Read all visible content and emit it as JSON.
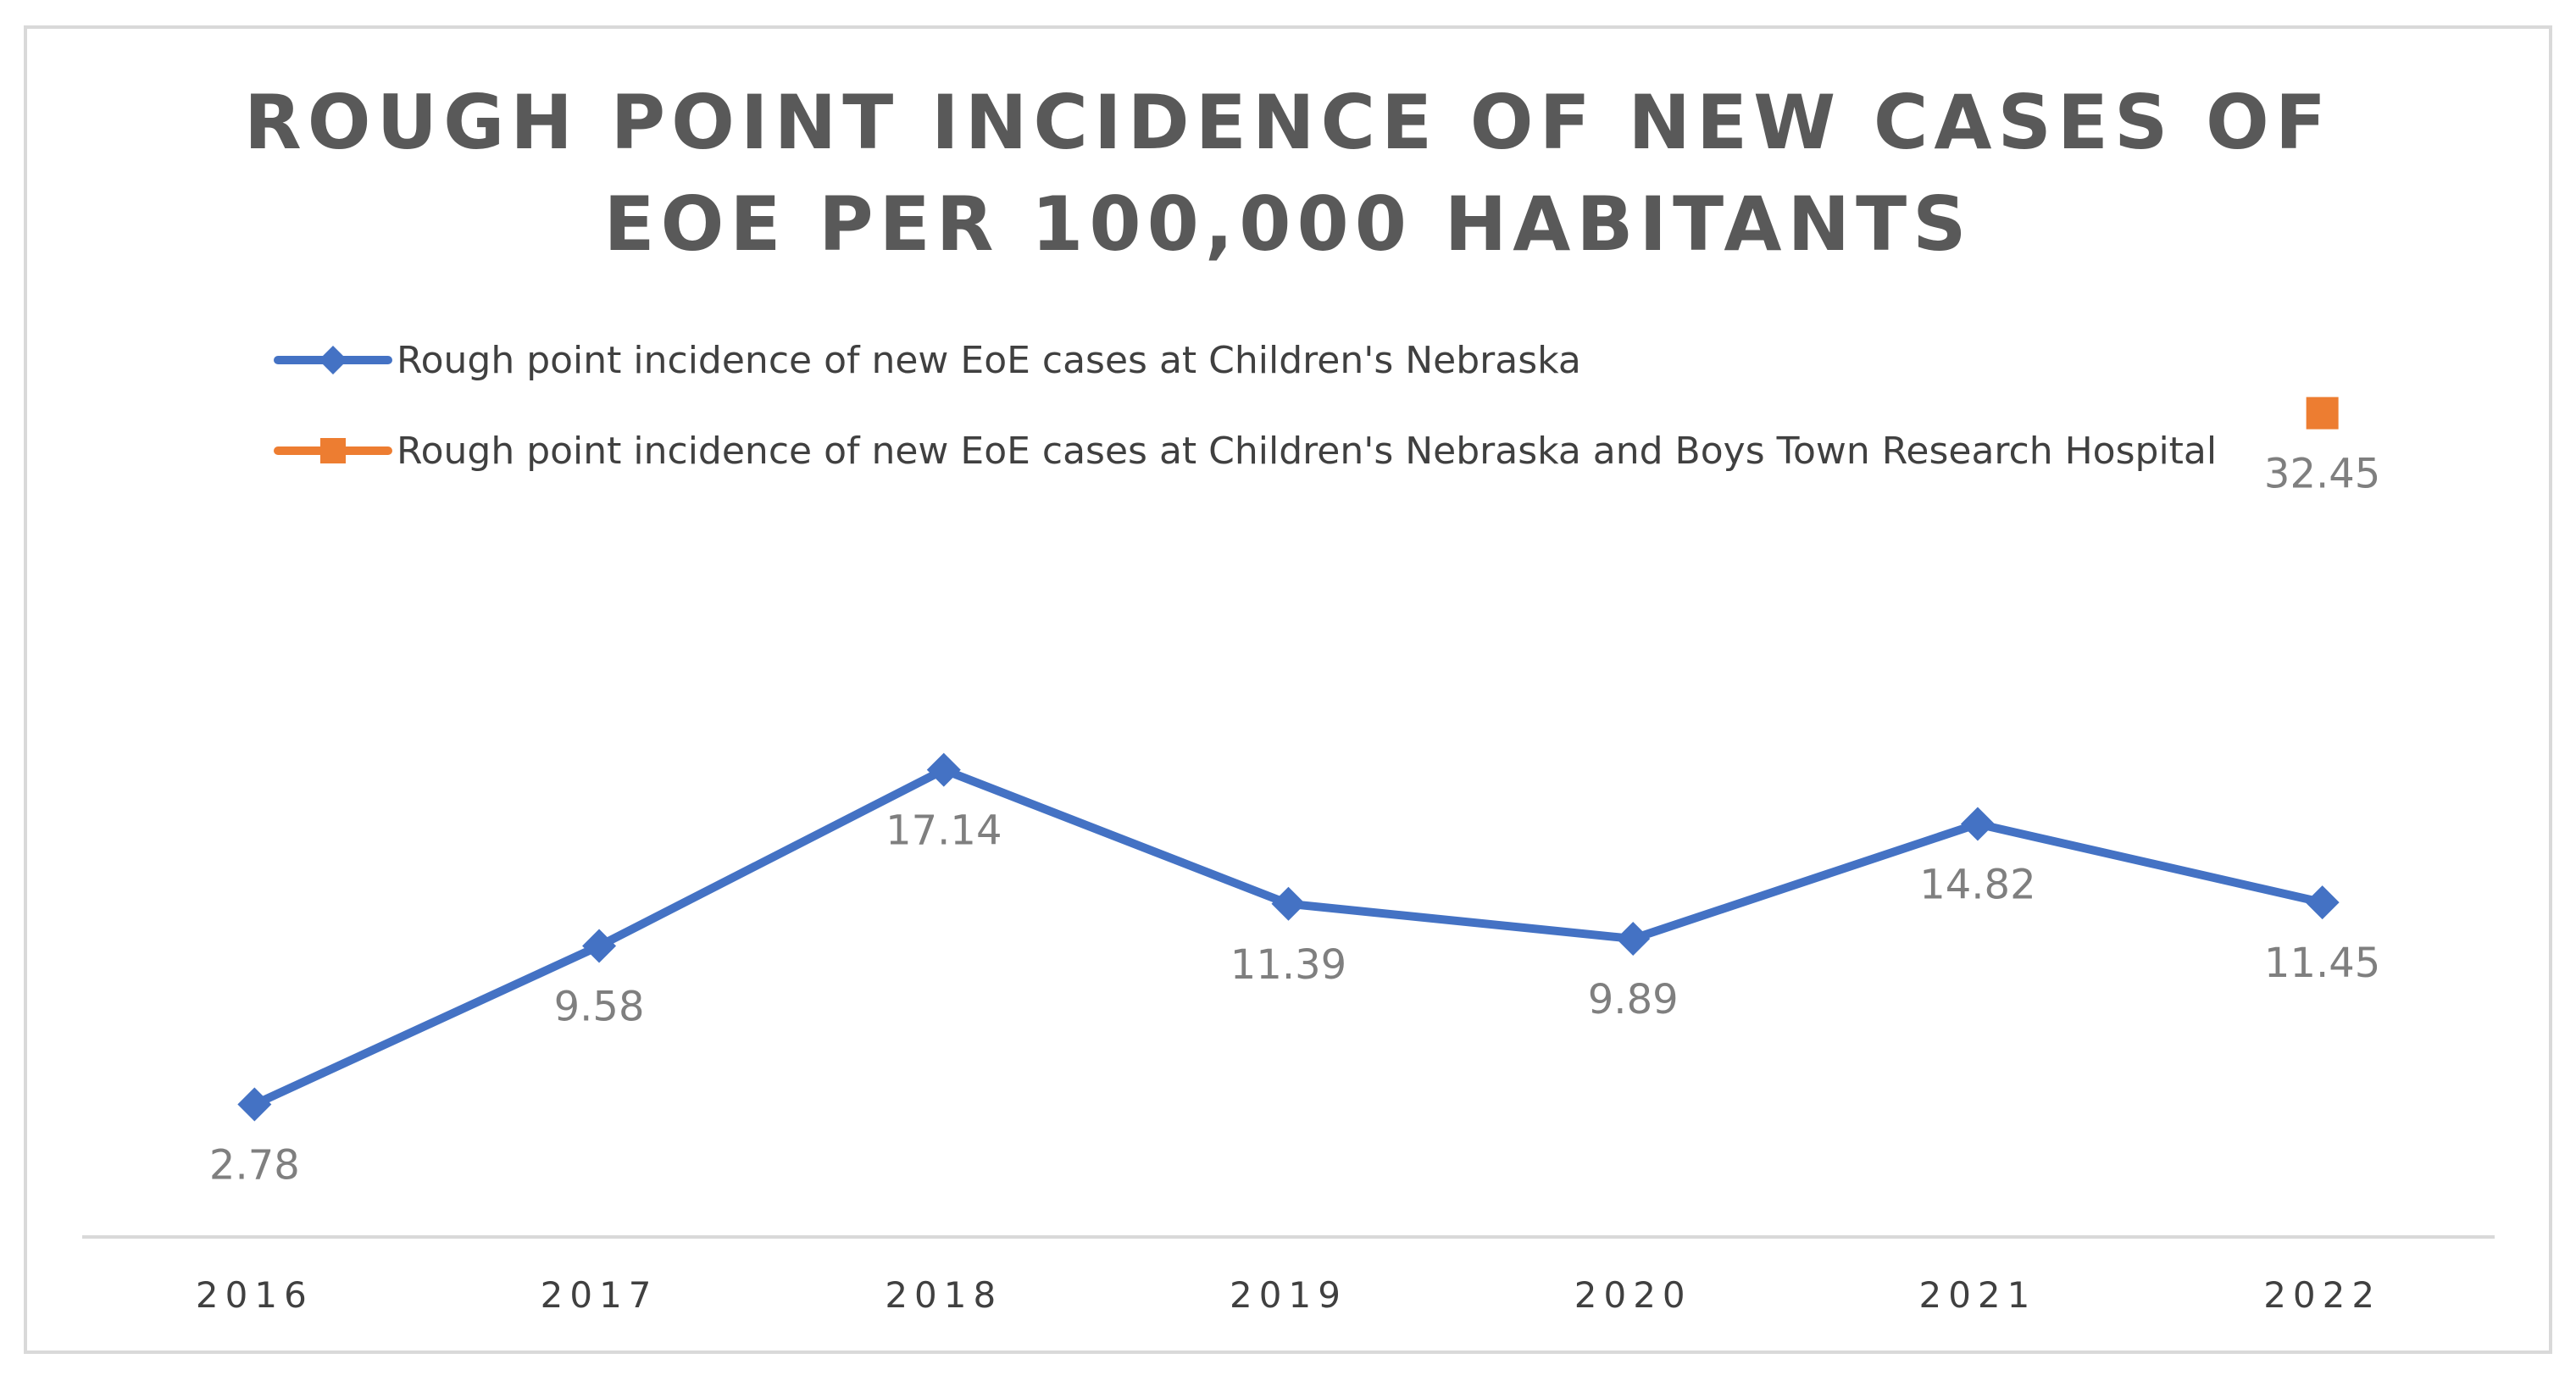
{
  "chart_data": {
    "type": "line",
    "title_lines": [
      "ROUGH POINT INCIDENCE OF NEW CASES OF",
      "EOE PER 100,000 HABITANTS"
    ],
    "categories": [
      "2016",
      "2017",
      "2018",
      "2019",
      "2020",
      "2021",
      "2022"
    ],
    "series": [
      {
        "name": "Rough point incidence of new EoE cases at Children's Nebraska",
        "color": "#4472c4",
        "marker": "diamond",
        "values": [
          2.78,
          9.58,
          17.14,
          11.39,
          9.89,
          14.82,
          11.45
        ],
        "labels": [
          "2.78",
          "9.58",
          "17.14",
          "11.39",
          "9.89",
          "14.82",
          "11.45"
        ]
      },
      {
        "name": "Rough point incidence of new EoE cases at Children's Nebraska and Boys Town Research Hospital",
        "color": "#ed7d31",
        "marker": "square",
        "values": [
          null,
          null,
          null,
          null,
          null,
          null,
          32.45
        ],
        "labels": [
          null,
          null,
          null,
          null,
          null,
          null,
          "32.45"
        ]
      }
    ],
    "xlabel": "",
    "ylabel": "",
    "ylim": [
      0,
      35
    ],
    "grid": false,
    "legend": "top-left"
  }
}
